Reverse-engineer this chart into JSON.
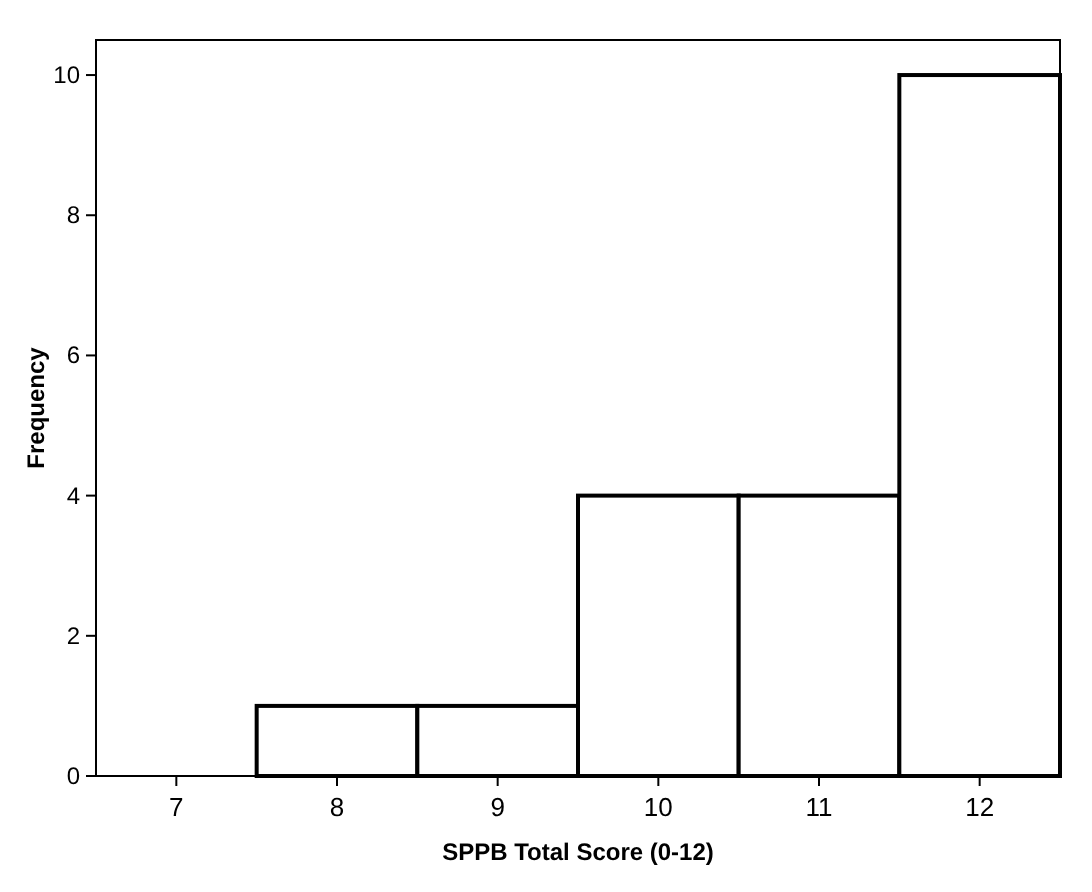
{
  "chart_data": {
    "type": "histogram",
    "xlabel": "SPPB Total Score (0-12)",
    "ylabel": "Frequency",
    "bins": [
      7.5,
      8.5,
      9.5,
      10.5,
      11.5,
      12.5
    ],
    "values": [
      1,
      1,
      4,
      4,
      10
    ],
    "color": "#ffffff",
    "xlim": [
      6.5,
      12.5
    ],
    "xticks": [
      7,
      8,
      9,
      10,
      11,
      12
    ],
    "ylim": [
      0,
      10.5
    ],
    "yticks": [
      0,
      2,
      4,
      6,
      8,
      10
    ],
    "grid": false
  }
}
